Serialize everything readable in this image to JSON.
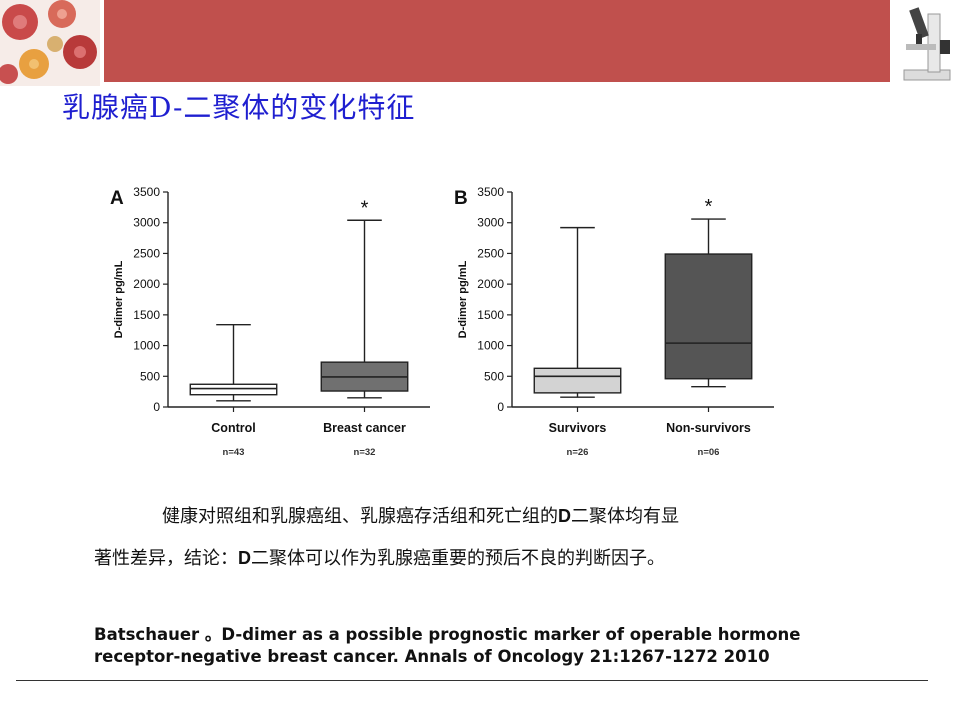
{
  "header": {
    "title": "乳腺癌D-二聚体的变化特征",
    "banner_color": "#c0504d",
    "left_image_icon": "blood-cells-icon",
    "right_image_icon": "microscope-icon"
  },
  "chart_data": [
    {
      "type": "box",
      "panel_label": "A",
      "ylabel": "D-dimer pg/mL",
      "ylim": [
        0,
        3500
      ],
      "yticks": [
        0,
        500,
        1000,
        1500,
        2000,
        2500,
        3000,
        3500
      ],
      "categories": [
        "Control",
        "Breast cancer"
      ],
      "n_labels": [
        "n=43",
        "n=32"
      ],
      "series": [
        {
          "category": "Control",
          "min": 100,
          "q1": 200,
          "median": 300,
          "q3": 370,
          "max": 1340,
          "fill": "#ffffff",
          "star": ""
        },
        {
          "category": "Breast cancer",
          "min": 150,
          "q1": 260,
          "median": 490,
          "q3": 730,
          "max": 3040,
          "fill": "#707070",
          "star": "*"
        }
      ]
    },
    {
      "type": "box",
      "panel_label": "B",
      "ylabel": "D-dimer pg/mL",
      "ylim": [
        0,
        3500
      ],
      "yticks": [
        0,
        500,
        1000,
        1500,
        2000,
        2500,
        3000,
        3500
      ],
      "categories": [
        "Survivors",
        "Non-survivors"
      ],
      "n_labels": [
        "n=26",
        "n=06"
      ],
      "series": [
        {
          "category": "Survivors",
          "min": 160,
          "q1": 230,
          "median": 500,
          "q3": 630,
          "max": 2920,
          "fill": "#d3d3d3",
          "star": ""
        },
        {
          "category": "Non-survivors",
          "min": 330,
          "q1": 460,
          "median": 1040,
          "q3": 2490,
          "max": 3060,
          "fill": "#555555",
          "star": "*"
        }
      ]
    }
  ],
  "body": {
    "line1_a": "健康对照组和乳腺癌组、乳腺癌存活组和死亡组的",
    "line1_b": "D",
    "line1_c": "二聚体均有显",
    "line2_a": "著性差异，结论：",
    "line2_b": "D",
    "line2_c": "二聚体可以作为乳腺癌重要的预后不良的判断因子。"
  },
  "citation": {
    "line1": "Batschauer 。D-dimer as a possible prognostic marker of operable hormone",
    "line2": "receptor-negative breast cancer. Annals of Oncology 21:1267-1272 2010"
  }
}
